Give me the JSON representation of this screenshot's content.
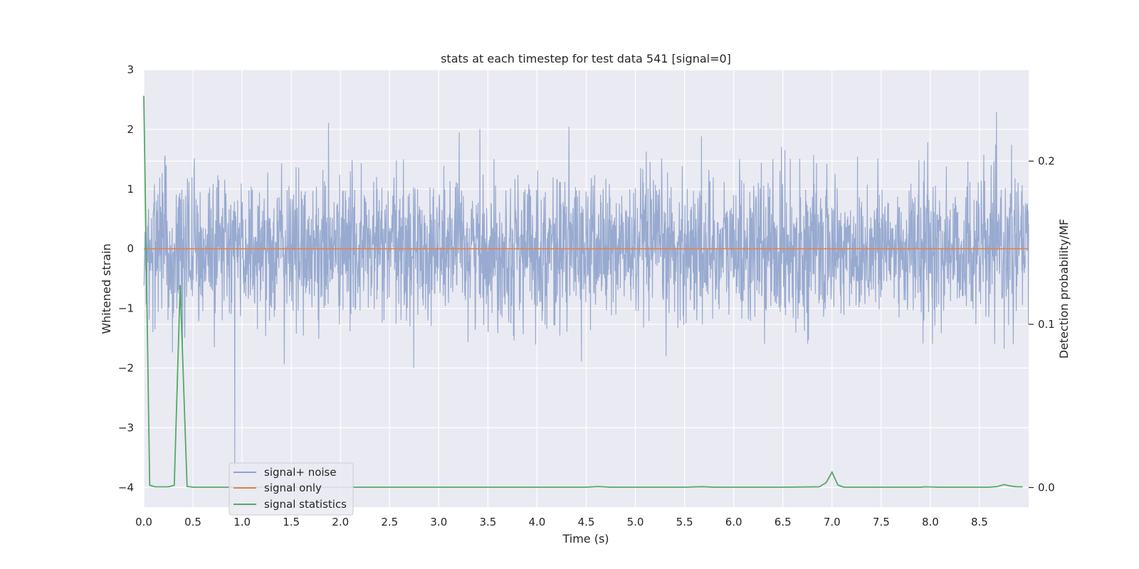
{
  "chart_data": {
    "type": "line",
    "title": "stats at each timestep for test data 541 [signal=0]",
    "xlabel": "Time (s)",
    "ylabel_left": "Whitened strain",
    "ylabel_right": "Detection probability/MF",
    "xlim": [
      0.0,
      9.0
    ],
    "ylim_left": [
      -4.33,
      3.0
    ],
    "ylim_right": [
      -0.012,
      0.256
    ],
    "x_ticks": [
      0.0,
      0.5,
      1.0,
      1.5,
      2.0,
      2.5,
      3.0,
      3.5,
      4.0,
      4.5,
      5.0,
      5.5,
      6.0,
      6.5,
      7.0,
      7.5,
      8.0,
      8.5
    ],
    "x_tick_labels": [
      "0.0",
      "0.5",
      "1.0",
      "1.5",
      "2.0",
      "2.5",
      "3.0",
      "3.5",
      "4.0",
      "4.5",
      "5.0",
      "5.5",
      "6.0",
      "6.5",
      "7.0",
      "7.5",
      "8.0",
      "8.5"
    ],
    "y_left_ticks": [
      3,
      2,
      1,
      0,
      -1,
      -2,
      -3,
      -4
    ],
    "y_left_tick_labels": [
      "3",
      "2",
      "1",
      "0",
      "−1",
      "−2",
      "−3",
      "−4"
    ],
    "y_right_ticks": [
      0.2,
      0.1,
      0.0
    ],
    "y_right_tick_labels": [
      "0.2",
      "0.1",
      "0.0"
    ],
    "grid": true,
    "legend_position": "bottom-left",
    "series": [
      {
        "name": "signal+ noise",
        "axis": "left",
        "color": "#8fa3cc",
        "style": "dense noise, approx Gaussian",
        "x_range": [
          0.0,
          9.0
        ],
        "typical_range": [
          -1.3,
          1.4
        ],
        "min": -3.65,
        "max": 2.7
      },
      {
        "name": "signal only",
        "axis": "left",
        "color": "#dd8452",
        "x": [
          0.0,
          9.0
        ],
        "values": [
          0.0,
          0.0
        ]
      },
      {
        "name": "signal statistics",
        "axis": "right",
        "color": "#55a868",
        "x": [
          0.0,
          0.06,
          0.12,
          0.25,
          0.31,
          0.37,
          0.44,
          0.5,
          1.0,
          2.0,
          3.0,
          4.0,
          4.5,
          4.62,
          4.75,
          5.0,
          5.5,
          5.68,
          5.8,
          6.5,
          6.87,
          6.94,
          7.0,
          7.06,
          7.12,
          7.5,
          7.9,
          7.95,
          8.1,
          8.6,
          8.68,
          8.75,
          8.81,
          8.87,
          8.94
        ],
        "values": [
          0.24,
          0.0014,
          0.0004,
          0.0004,
          0.0014,
          0.124,
          0.0007,
          0.0002,
          0.0002,
          0.0002,
          0.0002,
          0.0002,
          0.0002,
          0.0006,
          0.0002,
          0.0002,
          0.0002,
          0.0005,
          0.0002,
          0.0002,
          0.0004,
          0.003,
          0.0094,
          0.0015,
          0.0002,
          0.0002,
          0.0002,
          0.0004,
          0.0002,
          0.0002,
          0.0006,
          0.0018,
          0.001,
          0.0005,
          0.0004
        ]
      }
    ]
  }
}
